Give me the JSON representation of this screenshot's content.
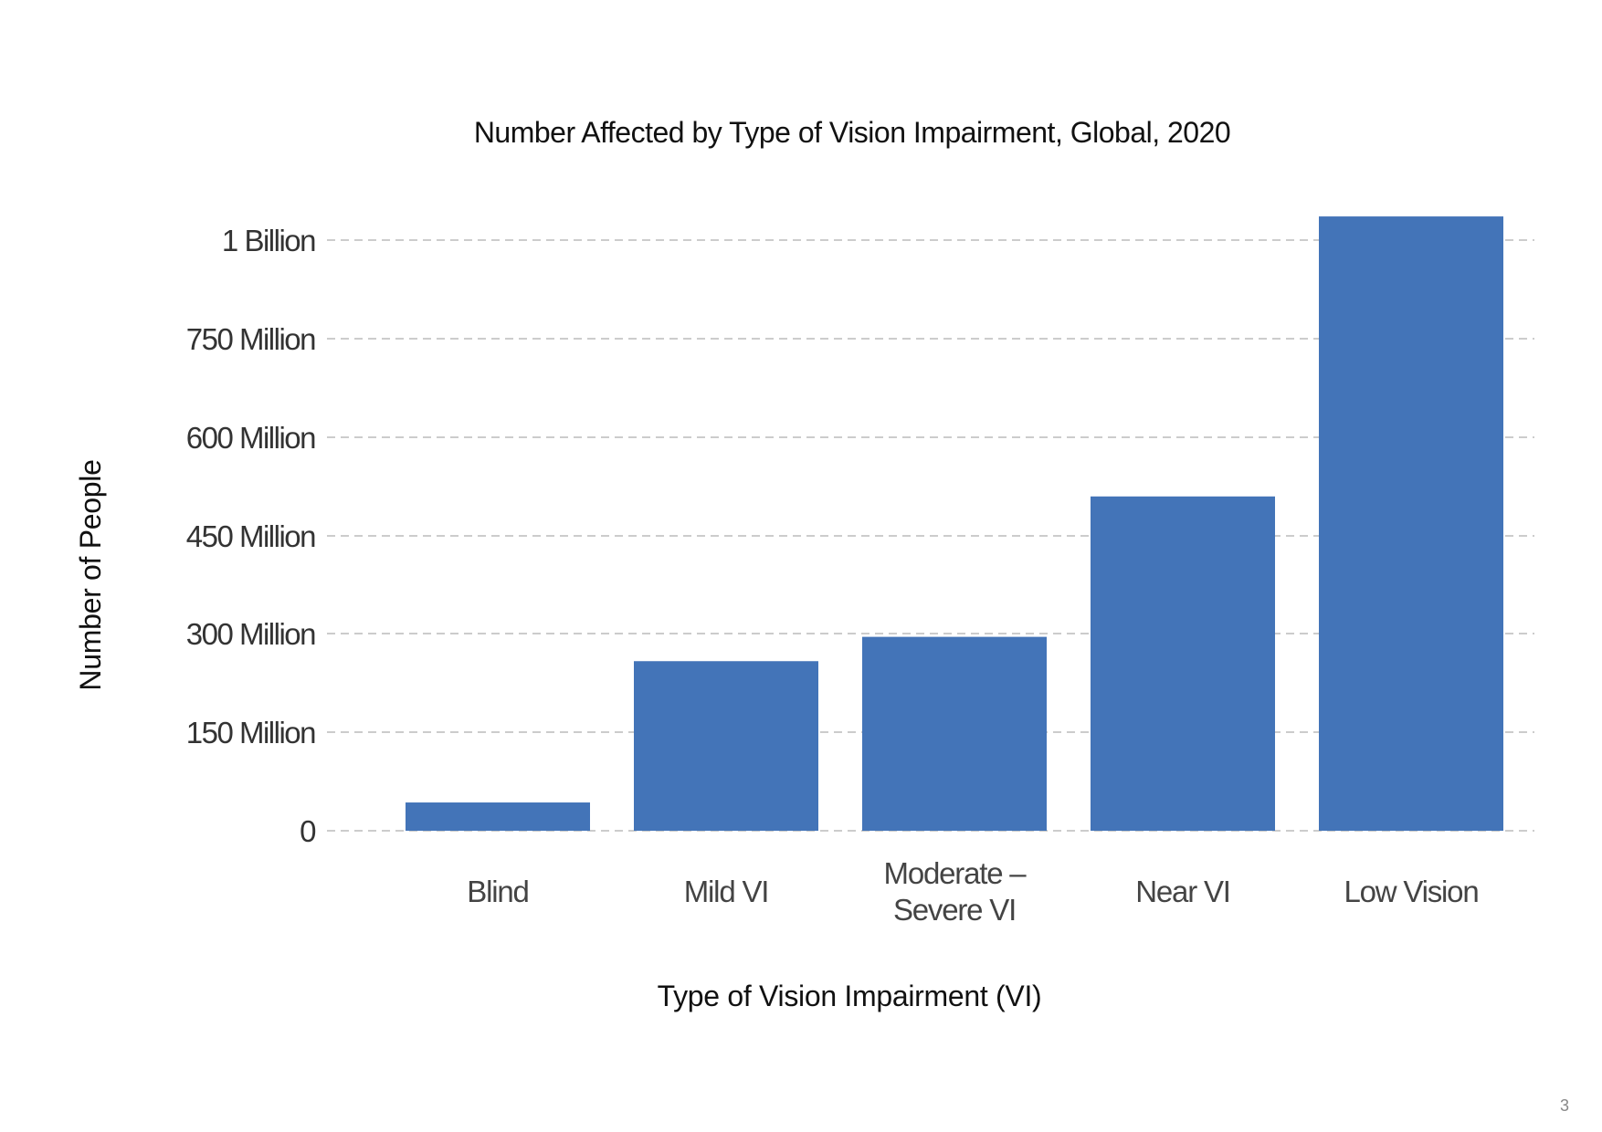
{
  "page": {
    "number": "3"
  },
  "colors": {
    "bar": "#4374B8",
    "grid": "#CCCCCC",
    "background": "#FFFFFF"
  },
  "chart_data": {
    "type": "bar",
    "title": "Number Affected by Type of Vision Impairment, Global, 2020",
    "xlabel": "Type of Vision Impairment (VI)",
    "ylabel": "Number of People",
    "categories": [
      [
        "Blind"
      ],
      [
        "Mild VI"
      ],
      [
        "Moderate –",
        "Severe VI"
      ],
      [
        "Near VI"
      ],
      [
        "Low Vision"
      ]
    ],
    "values": [
      43,
      258,
      295,
      510,
      1060
    ],
    "y_ticks": [
      {
        "value": 0,
        "label": "0"
      },
      {
        "value": 150,
        "label": "150 Million"
      },
      {
        "value": 300,
        "label": "300 Million"
      },
      {
        "value": 450,
        "label": "450 Million"
      },
      {
        "value": 600,
        "label": "600 Million"
      },
      {
        "value": 750,
        "label": "750 Million"
      },
      {
        "value": 1000,
        "label": "1 Billion"
      }
    ],
    "y_unit": "millions of people",
    "grid": true,
    "grid_style": "dashed horizontal",
    "legend": "none"
  }
}
